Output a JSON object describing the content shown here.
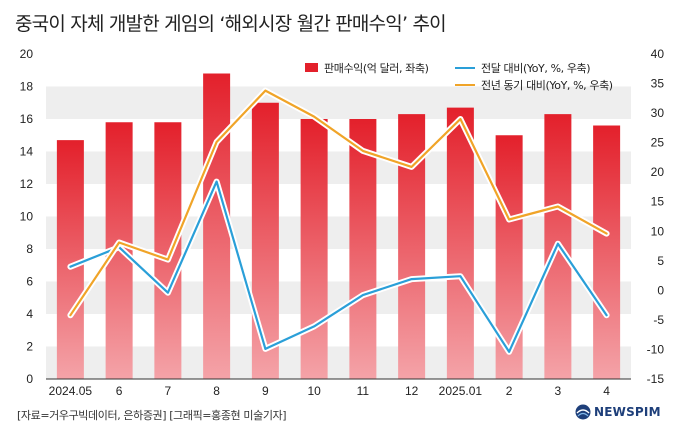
{
  "title": "중국이 자체 개발한 게임의 ‘해외시장 월간 판매수익’ 추이",
  "source": "[자료=거우구빅데이터, 은하증권] [그래픽=홍종현 미술기자]",
  "logo_text": "NEWSPIM",
  "colors": {
    "bar": "#e3202b",
    "mom_line": "#2a9fd8",
    "yoy_line": "#f0a428",
    "band": "#eeeeee"
  },
  "chart_data": {
    "type": "bar",
    "categories": [
      "2024.05",
      "6",
      "7",
      "8",
      "9",
      "10",
      "11",
      "12",
      "2025.01",
      "2",
      "3",
      "4"
    ],
    "ylim_left": [
      0,
      20
    ],
    "yticks_left": [
      0,
      2,
      4,
      6,
      8,
      10,
      12,
      14,
      16,
      18,
      20
    ],
    "ylim_right": [
      -15,
      40
    ],
    "yticks_right": [
      -15,
      -10,
      -5,
      0,
      5,
      10,
      15,
      20,
      25,
      30,
      35,
      40
    ],
    "grid": "alternating bands",
    "legend": "top-right",
    "series": [
      {
        "name": "판매수익(억 달러, 좌축)",
        "kind": "bar",
        "axis": "left",
        "values": [
          14.7,
          15.8,
          15.8,
          18.8,
          17.0,
          16.0,
          16.0,
          16.3,
          16.7,
          15.0,
          16.3,
          15.6
        ]
      },
      {
        "name": "전달 대비(YoY, %, 우축)",
        "kind": "line",
        "axis": "right",
        "values": [
          4.0,
          7.3,
          -0.4,
          18.4,
          -9.9,
          -6.1,
          -0.8,
          1.9,
          2.4,
          -10.4,
          7.9,
          -4.2
        ]
      },
      {
        "name": "전년 동기 대비(YoY, %, 우축)",
        "kind": "line",
        "axis": "right",
        "values": [
          -4.2,
          8.1,
          5.2,
          25.1,
          33.8,
          29.4,
          23.6,
          20.9,
          29.0,
          12.0,
          14.2,
          9.6
        ]
      }
    ]
  }
}
